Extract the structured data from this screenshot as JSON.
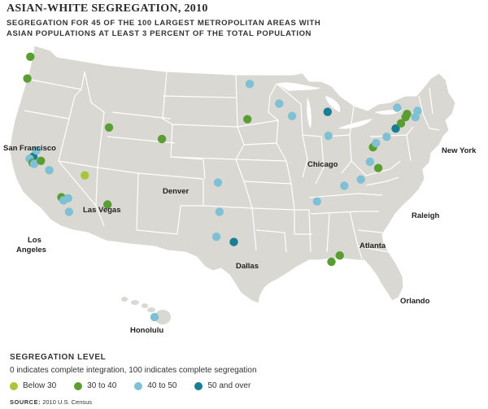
{
  "title": "ASIAN-WHITE SEGREGATION, 2010",
  "subtitle": "SEGREGATION FOR 45 OF THE 100 LARGEST METROPOLITAN AREAS WITH ASIAN POPULATIONS AT LEAST 3 PERCENT OF THE TOTAL POPULATION",
  "legend": {
    "title": "SEGREGATION LEVEL",
    "description": "0 indicates complete integration, 100 indicates complete segregation",
    "items": [
      {
        "label": "Below 30",
        "color": "#a9c63a"
      },
      {
        "label": "30 to 40",
        "color": "#5a9e33"
      },
      {
        "label": "40 to 50",
        "color": "#7ec1d5"
      },
      {
        "label": "50 and over",
        "color": "#177e96"
      }
    ]
  },
  "source": {
    "label": "SOURCE:",
    "text": "2010 U.S. Census"
  },
  "colors": {
    "land": "#d9d8d3",
    "border": "#ffffff",
    "water": "#ffffff"
  },
  "chart_data": {
    "type": "map",
    "legend_placement": "bottom-left",
    "city_labels": [
      {
        "text": "San Francisco"
      },
      {
        "text": "Las Vegas"
      },
      {
        "text": "Los"
      },
      {
        "text": "Angeles"
      },
      {
        "text": "Denver"
      },
      {
        "text": "Dallas"
      },
      {
        "text": "Honolulu"
      },
      {
        "text": "Chicago"
      },
      {
        "text": "New York"
      },
      {
        "text": "Raleigh"
      },
      {
        "text": "Atlanta"
      },
      {
        "text": "Orlando"
      }
    ],
    "points": [
      {
        "lon": -122.3,
        "lat": 47.6,
        "level": "30 to 40"
      },
      {
        "lon": -122.7,
        "lat": 45.5,
        "level": "30 to 40"
      },
      {
        "lon": -121.9,
        "lat": 38.0,
        "level": "50 and over"
      },
      {
        "lon": -122.4,
        "lat": 37.8,
        "level": "40 to 50"
      },
      {
        "lon": -122.0,
        "lat": 37.4,
        "level": "30 to 40"
      },
      {
        "lon": -121.5,
        "lat": 38.6,
        "level": "40 to 50"
      },
      {
        "lon": -121.8,
        "lat": 37.3,
        "level": "40 to 50"
      },
      {
        "lon": -120.9,
        "lat": 37.6,
        "level": "30 to 40"
      },
      {
        "lon": -119.8,
        "lat": 36.7,
        "level": "40 to 50"
      },
      {
        "lon": -118.2,
        "lat": 34.1,
        "level": "30 to 40"
      },
      {
        "lon": -117.9,
        "lat": 33.8,
        "level": "40 to 50"
      },
      {
        "lon": -117.3,
        "lat": 34.0,
        "level": "40 to 50"
      },
      {
        "lon": -117.2,
        "lat": 32.7,
        "level": "40 to 50"
      },
      {
        "lon": -115.1,
        "lat": 36.2,
        "level": "Below 30"
      },
      {
        "lon": -111.9,
        "lat": 40.8,
        "level": "30 to 40"
      },
      {
        "lon": -112.1,
        "lat": 33.4,
        "level": "30 to 40"
      },
      {
        "lon": -104.9,
        "lat": 39.7,
        "level": "30 to 40"
      },
      {
        "lon": -97.5,
        "lat": 35.5,
        "level": "40 to 50"
      },
      {
        "lon": -93.3,
        "lat": 44.98,
        "level": "40 to 50"
      },
      {
        "lon": -93.6,
        "lat": 41.6,
        "level": "30 to 40"
      },
      {
        "lon": -97.3,
        "lat": 32.7,
        "level": "40 to 50"
      },
      {
        "lon": -97.7,
        "lat": 30.3,
        "level": "40 to 50"
      },
      {
        "lon": -95.4,
        "lat": 29.8,
        "level": "50 and over"
      },
      {
        "lon": -157.9,
        "lat": 21.3,
        "level": "40 to 50"
      },
      {
        "lon": -89.4,
        "lat": 43.1,
        "level": "40 to 50"
      },
      {
        "lon": -87.7,
        "lat": 41.9,
        "level": "40 to 50"
      },
      {
        "lon": -83.0,
        "lat": 42.3,
        "level": "50 and over"
      },
      {
        "lon": -82.9,
        "lat": 40.0,
        "level": "40 to 50"
      },
      {
        "lon": -84.4,
        "lat": 33.7,
        "level": "40 to 50"
      },
      {
        "lon": -80.8,
        "lat": 35.2,
        "level": "40 to 50"
      },
      {
        "lon": -78.6,
        "lat": 35.8,
        "level": "40 to 50"
      },
      {
        "lon": -77.4,
        "lat": 37.5,
        "level": "40 to 50"
      },
      {
        "lon": -76.3,
        "lat": 36.9,
        "level": "30 to 40"
      },
      {
        "lon": -77.0,
        "lat": 38.9,
        "level": "30 to 40"
      },
      {
        "lon": -76.6,
        "lat": 39.3,
        "level": "40 to 50"
      },
      {
        "lon": -75.2,
        "lat": 39.9,
        "level": "40 to 50"
      },
      {
        "lon": -74.0,
        "lat": 40.7,
        "level": "50 and over"
      },
      {
        "lon": -73.3,
        "lat": 41.2,
        "level": "30 to 40"
      },
      {
        "lon": -72.7,
        "lat": 41.8,
        "level": "30 to 40"
      },
      {
        "lon": -71.4,
        "lat": 41.8,
        "level": "40 to 50"
      },
      {
        "lon": -71.1,
        "lat": 42.4,
        "level": "40 to 50"
      },
      {
        "lon": -73.8,
        "lat": 42.7,
        "level": "40 to 50"
      },
      {
        "lon": -72.5,
        "lat": 42.1,
        "level": "30 to 40"
      },
      {
        "lon": -81.4,
        "lat": 28.5,
        "level": "30 to 40"
      },
      {
        "lon": -82.5,
        "lat": 27.9,
        "level": "30 to 40"
      }
    ]
  }
}
